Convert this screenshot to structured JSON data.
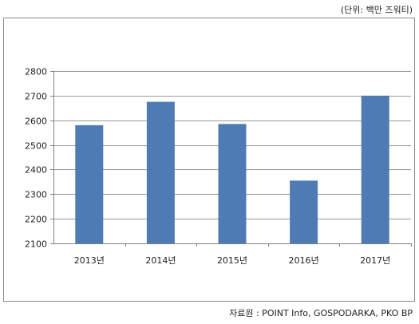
{
  "unit_note": "(단위: 백만 즈워티)",
  "source_note": "자료원 : POINT Info, GOSPODARKA, PKO BP",
  "chart_data": {
    "type": "bar",
    "title": "",
    "xlabel": "",
    "ylabel": "",
    "categories": [
      "2013년",
      "2014년",
      "2015년",
      "2016년",
      "2017년"
    ],
    "values": [
      2580,
      2675,
      2585,
      2355,
      2700
    ],
    "ylim": [
      2100,
      2800
    ],
    "yticks": [
      2100,
      2200,
      2300,
      2400,
      2500,
      2600,
      2700,
      2800
    ],
    "grid": true,
    "legend": "none",
    "bar_color": "#4f7bb5",
    "grid_color": "#999999"
  }
}
